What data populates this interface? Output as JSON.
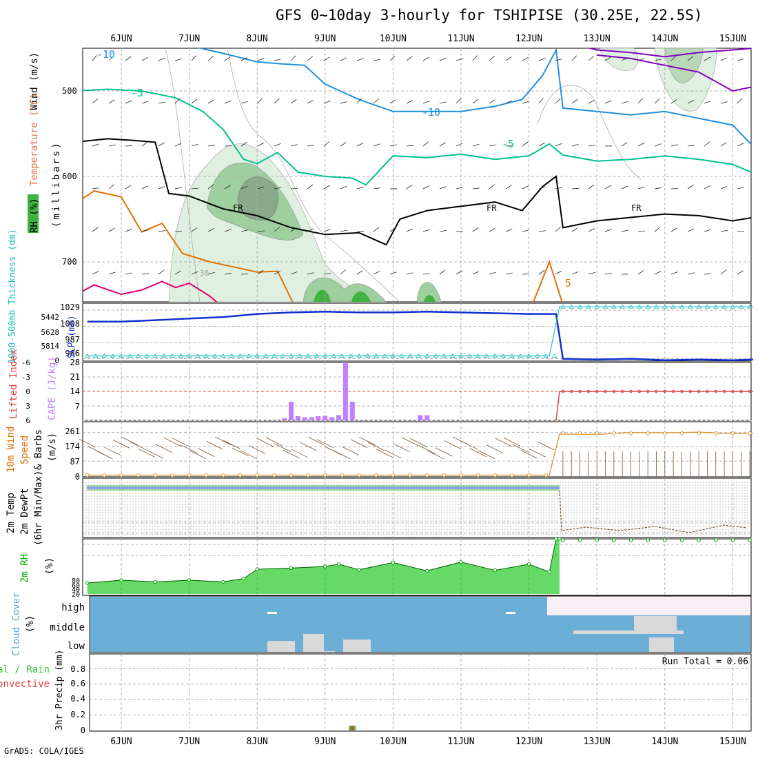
{
  "title": "GFS 0~10day 3-hourly for TSHIPISE (30.25E, 22.5S)",
  "credit": "GrADS: COLA/IGES",
  "days": [
    "6JUN",
    "7JUN",
    "8JUN",
    "9JUN",
    "10JUN",
    "11JUN",
    "12JUN",
    "13JUN",
    "14JUN",
    "15JUN"
  ],
  "colors": {
    "grid": "#b0b0b0",
    "dryline": "#0000ff",
    "rh_light": "#e0f0e0",
    "rh_mid": "#9fcf9f",
    "rh_dark": "#3fb23f",
    "temp_purple": "#8000c0",
    "temp_blue": "#1e90e0",
    "temp_teal": "#00c090",
    "temp_orange": "#e07000",
    "temp_red": "#e00070",
    "slp": "#1030d0",
    "thick": "#20c0c0",
    "cape": "#c080ff",
    "li": "#e04040",
    "wind": "#e09020",
    "rh2m": "#00c000",
    "cloud_bg": "#6baed6",
    "cloud": "#d9d9d9",
    "precip_conv": "#e04040",
    "precip_total": "#40c040"
  },
  "panels": {
    "upper": {
      "ylabel_wind": "Wind (m/s)",
      "ylabel_temp": "Temperature (°C)",
      "ylabel_rh": "RH (%)",
      "ylabel_p": "(millibars)",
      "yticks": [
        "500",
        "600",
        "700"
      ],
      "contour_labels": [
        "-10",
        "-5",
        "-10",
        "-5",
        "FR",
        "FR",
        "FR",
        "5",
        "30"
      ]
    },
    "slp": {
      "ylabel_thick": "1000-500mb Thickness (dm)",
      "ylabel_slp": "SLP (mb)",
      "left_ticks": [
        "5442",
        "5628",
        "5814",
        "0"
      ],
      "right_ticks": [
        "1029",
        "1008",
        "987",
        "966"
      ]
    },
    "cape": {
      "ylabel_li": "Lifted Index",
      "ylabel_cape": "CAPE (J/kg)",
      "left_ticks": [
        "-6",
        "-3",
        "0",
        "3",
        "6"
      ],
      "right_ticks": [
        "28",
        "21",
        "14",
        "7"
      ]
    },
    "wind": {
      "ylabel_a": "10m Wind",
      "ylabel_b": "Speed",
      "ylabel_c": "& Barbs",
      "ylabel_d": "(m/s)",
      "ticks": [
        "261",
        "174",
        "87",
        "0"
      ]
    },
    "temp": {
      "ylabel_a": "2m Temp",
      "ylabel_b": "2m DewPt",
      "ylabel_c": "(6hr Min/Max)"
    },
    "rh": {
      "ylabel_a": "2m RH",
      "ylabel_b": "(%)",
      "ticks": [
        "80",
        "60",
        "40",
        "20"
      ]
    },
    "cloud": {
      "ylabel_a": "Cloud Cover",
      "ylabel_b": "(%)",
      "levels": [
        "high",
        "middle",
        "low"
      ]
    },
    "precip": {
      "ylabel_a": "Total / Rain",
      "ylabel_b": "Convective",
      "ylabel_c": "3hr Precip (mm)",
      "ticks": [
        "0.8",
        "0.6",
        "0.4",
        "0.2",
        "0"
      ],
      "run_total": "Run Total = 0.06"
    }
  },
  "chart_data": [
    {
      "type": "line",
      "name": "upper-air cross section",
      "x_unit": "days",
      "series": [
        {
          "name": "T -10 (teal-blue)",
          "x": [
            5.3,
            6,
            6.5,
            7,
            7.5,
            8,
            8.3,
            8.7,
            9,
            9.5,
            10,
            10.5,
            11,
            11.5,
            11.9,
            12.2,
            12.4,
            12.5,
            13,
            13.5,
            14,
            14.5,
            15,
            15.3
          ],
          "y": [
            446,
            444,
            447,
            447,
            456,
            466,
            468,
            470,
            492,
            510,
            524,
            524,
            524,
            518,
            510,
            482,
            452,
            520,
            524,
            528,
            524,
            532,
            540,
            565
          ]
        },
        {
          "name": "T -5 (teal)",
          "x": [
            5.3,
            5.8,
            6.3,
            6.8,
            7.2,
            7.5,
            7.8,
            8,
            8.3,
            8.6,
            9,
            9.4,
            9.6,
            10,
            10.5,
            11,
            11.5,
            12,
            12.3,
            12.5,
            13,
            13.5,
            14,
            14.5,
            15,
            15.3
          ],
          "y": [
            500,
            498,
            500,
            508,
            524,
            545,
            580,
            585,
            572,
            595,
            600,
            602,
            610,
            576,
            578,
            574,
            580,
            576,
            562,
            575,
            582,
            580,
            576,
            580,
            586,
            596
          ]
        },
        {
          "name": "FR",
          "x": [
            5.3,
            5.8,
            6.2,
            6.5,
            6.7,
            7,
            7.5,
            8,
            8.5,
            9,
            9.5,
            9.9,
            10.1,
            10.5,
            11,
            11.5,
            11.9,
            12.2,
            12.4,
            12.5,
            13,
            13.5,
            14,
            14.5,
            15,
            15.3
          ],
          "y": [
            560,
            556,
            558,
            560,
            620,
            623,
            638,
            646,
            660,
            668,
            666,
            680,
            650,
            640,
            635,
            630,
            640,
            612,
            600,
            660,
            652,
            648,
            644,
            646,
            652,
            648
          ]
        },
        {
          "name": "T 5 (orange)",
          "x": [
            5.3,
            5.6,
            6,
            6.3,
            6.6,
            6.9,
            7.3,
            7.6,
            8,
            8.3,
            8.6,
            12,
            12.3,
            12.5,
            13,
            13.5,
            14,
            14.5,
            15,
            15.3
          ],
          "y": [
            633,
            617,
            624,
            665,
            655,
            690,
            700,
            705,
            712,
            711,
            760,
            760,
            700,
            750,
            750,
            752,
            748,
            752,
            755,
            753
          ]
        },
        {
          "name": "T 10 (red)",
          "x": [
            5.3,
            5.6,
            6,
            6.3,
            6.6,
            6.8,
            7,
            7.3,
            7.6
          ],
          "y": [
            740,
            727,
            738,
            733,
            723,
            730,
            725,
            740,
            760
          ]
        },
        {
          "name": "T -15 (purple)",
          "x": [
            7.8,
            8.5,
            9,
            10,
            11,
            12,
            12.5,
            13,
            13.5,
            14,
            14.5,
            15,
            15.3
          ],
          "y": [
            442,
            447,
            448,
            447,
            448,
            446,
            442,
            452,
            455,
            460,
            455,
            452,
            450
          ]
        },
        {
          "name": "T -15 lower (purple)",
          "x": [
            13,
            13.5,
            14,
            14.5,
            15,
            15.3
          ],
          "y": [
            458,
            462,
            470,
            478,
            500,
            495
          ]
        }
      ]
    },
    {
      "type": "line",
      "name": "SLP and thickness",
      "series": [
        {
          "name": "SLP (mb)",
          "x": [
            5.5,
            6,
            6.5,
            7,
            7.5,
            8,
            8.5,
            9,
            9.5,
            10,
            10.5,
            11,
            11.5,
            12,
            12.3,
            12.4,
            12.5,
            13,
            13.5,
            14,
            14.5,
            15,
            15.3
          ],
          "y": [
            1014,
            1014,
            1016,
            1018,
            1020,
            1024,
            1026,
            1027,
            1026,
            1026,
            1027,
            1026,
            1025,
            1024,
            1024,
            1024,
            966,
            965,
            966,
            964,
            965,
            964,
            965
          ]
        },
        {
          "name": "Thickness (dm)",
          "x": [
            5.5,
            12.3,
            12.45,
            15.3
          ],
          "y": [
            0.3,
            0.3,
            6.5,
            6.5
          ]
        }
      ]
    },
    {
      "type": "bar",
      "name": "CAPE (J/kg)",
      "categories": [
        "8.4",
        "8.5",
        "8.6",
        "8.7",
        "8.8",
        "8.9",
        "9.0",
        "9.1",
        "9.2",
        "9.3",
        "9.4",
        "9.5",
        "10.4",
        "10.5"
      ],
      "values": [
        1,
        9,
        2,
        1.5,
        1.5,
        2,
        2.2,
        1.5,
        2.5,
        28,
        9,
        0,
        2.5,
        2.5
      ]
    },
    {
      "type": "line",
      "name": "Lifted Index",
      "x": [
        12.4,
        12.45,
        15.3
      ],
      "y": [
        6,
        0,
        0
      ]
    },
    {
      "type": "line",
      "name": "10m wind speed (m/s)",
      "x": [
        5.5,
        12.3,
        12.45,
        13,
        13.5,
        14,
        14.5,
        15,
        15.3
      ],
      "y": [
        2,
        2,
        250,
        248,
        260,
        258,
        262,
        252,
        255
      ]
    },
    {
      "type": "area",
      "name": "2m RH (%)",
      "x": [
        5.5,
        6,
        6.5,
        7,
        7.5,
        7.8,
        8,
        8.5,
        9,
        9.2,
        9.5,
        10,
        10.5,
        11,
        11.5,
        12,
        12.3,
        12.4,
        12.45
      ],
      "y": [
        20,
        25,
        22,
        25,
        22,
        28,
        45,
        47,
        50,
        54,
        44,
        57,
        42,
        58,
        43,
        54,
        40,
        100,
        100
      ]
    },
    {
      "type": "bar",
      "name": "3hr Precip (mm)",
      "categories": [
        "9.4"
      ],
      "values": [
        0.06
      ]
    }
  ]
}
